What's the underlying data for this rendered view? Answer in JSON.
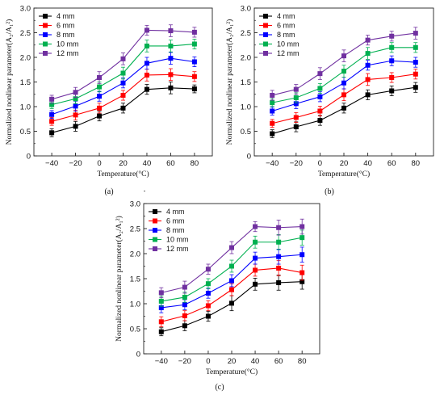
{
  "chart_data": [
    {
      "type": "line",
      "panel_label": "(a)",
      "xlabel": "Temperature(°C)",
      "ylabel_text": "Normalized nonlinear parameter",
      "ylabel_formula": "(A₂/A₁²)",
      "x": [
        -40,
        -20,
        0,
        20,
        40,
        60,
        80
      ],
      "xticks": [
        "−40",
        "−20",
        "0",
        "20",
        "40",
        "60",
        "80"
      ],
      "xlim": [
        -55,
        95
      ],
      "ylim": [
        0,
        3.0
      ],
      "yticks": [
        "0",
        "0.5",
        "1.0",
        "1.5",
        "2.0",
        "2.5",
        "3.0"
      ],
      "legend_position": "top-left",
      "series": [
        {
          "name": "4 mm",
          "color": "#000000",
          "marker": "square",
          "values": [
            0.47,
            0.6,
            0.81,
            0.97,
            1.35,
            1.38,
            1.36
          ],
          "errors": [
            0.08,
            0.1,
            0.1,
            0.1,
            0.1,
            0.12,
            0.08
          ]
        },
        {
          "name": "6 mm",
          "color": "#ff0000",
          "marker": "square",
          "values": [
            0.7,
            0.83,
            0.97,
            1.23,
            1.64,
            1.65,
            1.61
          ],
          "errors": [
            0.08,
            0.1,
            0.1,
            0.1,
            0.12,
            0.12,
            0.1
          ]
        },
        {
          "name": "8 mm",
          "color": "#0000ff",
          "marker": "square",
          "values": [
            0.84,
            1.01,
            1.21,
            1.48,
            1.88,
            1.98,
            1.91
          ],
          "errors": [
            0.08,
            0.1,
            0.1,
            0.1,
            0.12,
            0.12,
            0.1
          ]
        },
        {
          "name": "10 mm",
          "color": "#00b050",
          "marker": "square",
          "values": [
            1.04,
            1.16,
            1.4,
            1.68,
            2.23,
            2.23,
            2.27
          ],
          "errors": [
            0.08,
            0.1,
            0.1,
            0.12,
            0.12,
            0.12,
            0.1
          ]
        },
        {
          "name": "12 mm",
          "color": "#7030a0",
          "marker": "square",
          "values": [
            1.15,
            1.29,
            1.59,
            1.97,
            2.55,
            2.54,
            2.51
          ],
          "errors": [
            0.08,
            0.1,
            0.12,
            0.12,
            0.1,
            0.12,
            0.1
          ]
        }
      ]
    },
    {
      "type": "line",
      "panel_label": "(b)",
      "xlabel": "Temperature(°C)",
      "ylabel_text": "Normalized nonlinear parameter",
      "ylabel_formula": "(A₂/A₁²)",
      "x": [
        -40,
        -20,
        0,
        20,
        40,
        60,
        80
      ],
      "xticks": [
        "−40",
        "−20",
        "0",
        "20",
        "40",
        "60",
        "80"
      ],
      "xlim": [
        -55,
        95
      ],
      "ylim": [
        0,
        3.0
      ],
      "yticks": [
        "0",
        "0.5",
        "1.0",
        "1.5",
        "2.0",
        "2.5",
        "3.0"
      ],
      "legend_position": "top-left",
      "series": [
        {
          "name": "4 mm",
          "color": "#000000",
          "marker": "square",
          "values": [
            0.45,
            0.59,
            0.72,
            0.97,
            1.24,
            1.32,
            1.39
          ],
          "errors": [
            0.08,
            0.1,
            0.1,
            0.1,
            0.1,
            0.1,
            0.1
          ]
        },
        {
          "name": "6 mm",
          "color": "#ff0000",
          "marker": "square",
          "values": [
            0.66,
            0.78,
            0.91,
            1.24,
            1.55,
            1.59,
            1.66
          ],
          "errors": [
            0.08,
            0.1,
            0.1,
            0.12,
            0.12,
            0.1,
            0.1
          ]
        },
        {
          "name": "8 mm",
          "color": "#0000ff",
          "marker": "square",
          "values": [
            0.91,
            1.06,
            1.2,
            1.48,
            1.84,
            1.93,
            1.9
          ],
          "errors": [
            0.08,
            0.1,
            0.1,
            0.12,
            0.1,
            0.1,
            0.1
          ]
        },
        {
          "name": "10 mm",
          "color": "#00b050",
          "marker": "square",
          "values": [
            1.08,
            1.18,
            1.37,
            1.72,
            2.08,
            2.2,
            2.2
          ],
          "errors": [
            0.08,
            0.1,
            0.1,
            0.12,
            0.12,
            0.1,
            0.1
          ]
        },
        {
          "name": "12 mm",
          "color": "#7030a0",
          "marker": "square",
          "values": [
            1.23,
            1.35,
            1.67,
            2.03,
            2.35,
            2.43,
            2.49
          ],
          "errors": [
            0.1,
            0.1,
            0.12,
            0.12,
            0.1,
            0.1,
            0.12
          ]
        }
      ]
    },
    {
      "type": "line",
      "panel_label": "(c)",
      "xlabel": "Temperature(°C)",
      "ylabel_text": "Normalized nonlinear parameter",
      "ylabel_formula": "(A₂/A₁²)",
      "x": [
        -40,
        -20,
        0,
        20,
        40,
        60,
        80
      ],
      "xticks": [
        "−40",
        "−20",
        "0",
        "20",
        "40",
        "60",
        "80"
      ],
      "xlim": [
        -55,
        95
      ],
      "ylim": [
        0,
        3.0
      ],
      "yticks": [
        "0",
        "0.5",
        "1.0",
        "1.5",
        "2.0",
        "2.5",
        "3.0"
      ],
      "legend_position": "top-left",
      "series": [
        {
          "name": "4 mm",
          "color": "#000000",
          "marker": "square",
          "values": [
            0.44,
            0.56,
            0.75,
            1.01,
            1.39,
            1.42,
            1.44
          ],
          "errors": [
            0.08,
            0.1,
            0.1,
            0.15,
            0.12,
            0.15,
            0.15
          ]
        },
        {
          "name": "6 mm",
          "color": "#ff0000",
          "marker": "square",
          "values": [
            0.64,
            0.76,
            0.96,
            1.28,
            1.67,
            1.71,
            1.62
          ],
          "errors": [
            0.1,
            0.1,
            0.1,
            0.12,
            0.12,
            0.15,
            0.15
          ]
        },
        {
          "name": "8 mm",
          "color": "#0000ff",
          "marker": "square",
          "values": [
            0.92,
            0.98,
            1.21,
            1.46,
            1.91,
            1.94,
            1.98
          ],
          "errors": [
            0.1,
            0.1,
            0.1,
            0.12,
            0.12,
            0.15,
            0.15
          ]
        },
        {
          "name": "10 mm",
          "color": "#00b050",
          "marker": "square",
          "values": [
            1.05,
            1.13,
            1.4,
            1.75,
            2.23,
            2.23,
            2.32
          ],
          "errors": [
            0.1,
            0.1,
            0.1,
            0.12,
            0.12,
            0.15,
            0.15
          ]
        },
        {
          "name": "12 mm",
          "color": "#7030a0",
          "marker": "square",
          "values": [
            1.22,
            1.33,
            1.69,
            2.12,
            2.54,
            2.52,
            2.54
          ],
          "errors": [
            0.1,
            0.12,
            0.1,
            0.12,
            0.1,
            0.15,
            0.15
          ]
        }
      ]
    }
  ]
}
